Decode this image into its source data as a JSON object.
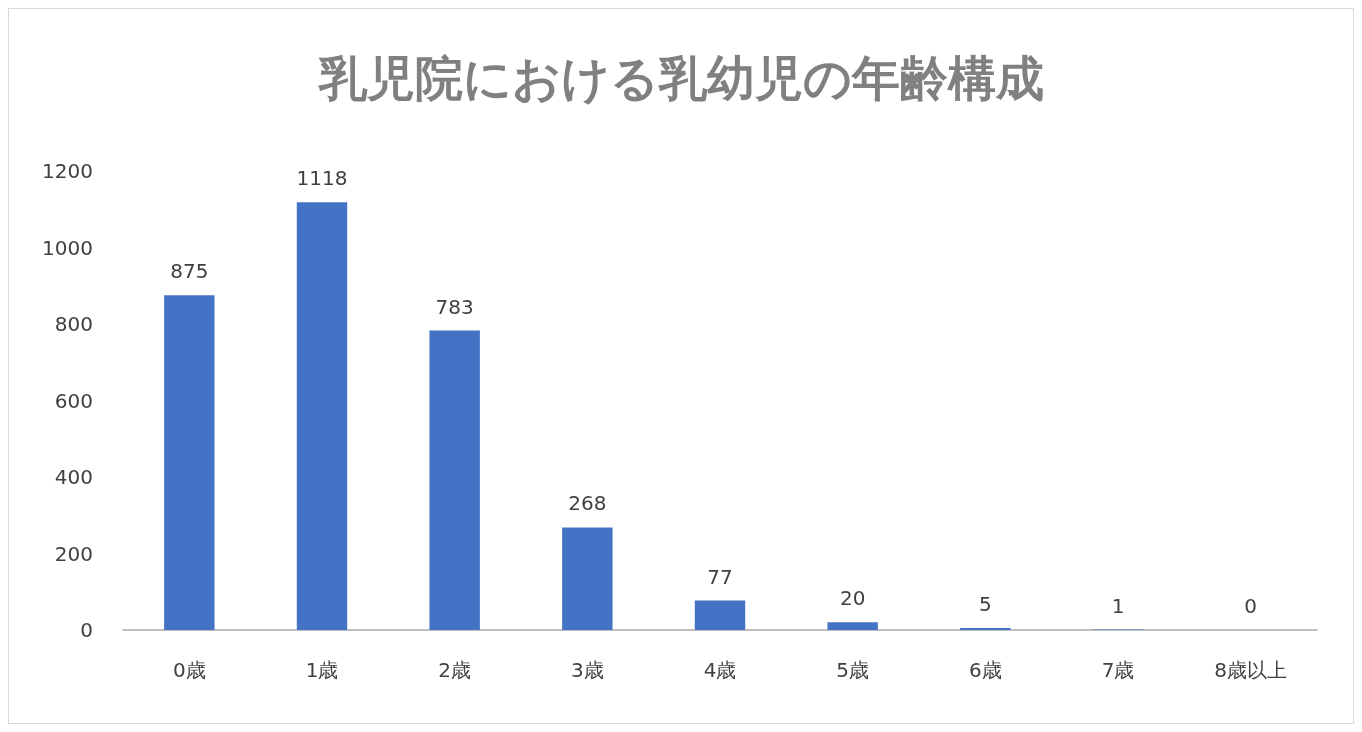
{
  "chart_data": {
    "type": "bar",
    "title": "乳児院における乳幼児の年齢構成",
    "categories": [
      "0歳",
      "1歳",
      "2歳",
      "3歳",
      "4歳",
      "5歳",
      "6歳",
      "7歳",
      "8歳以上"
    ],
    "values": [
      875,
      1118,
      783,
      268,
      77,
      20,
      5,
      1,
      0
    ],
    "color": "#4472c4",
    "ylim": [
      0,
      1200
    ],
    "yticks": [
      0,
      200,
      400,
      600,
      800,
      1000,
      1200
    ],
    "grid": false,
    "data_labels": true
  }
}
